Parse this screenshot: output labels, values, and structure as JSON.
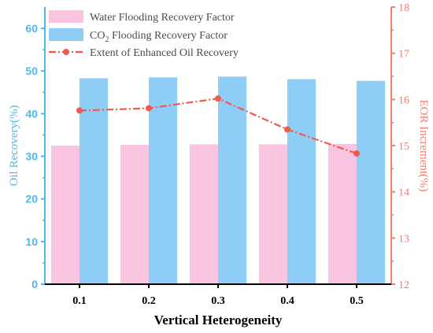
{
  "chart_data": {
    "type": "bar",
    "xlabel": "Vertical Heterogeneity",
    "ylabel_left": "Oil Recovery(%)",
    "ylabel_right": "EOR Increment(%)",
    "categories": [
      "0.1",
      "0.2",
      "0.3",
      "0.4",
      "0.5"
    ],
    "y_left": {
      "min": 0,
      "max": 65,
      "ticks": [
        "0",
        "10",
        "20",
        "30",
        "40",
        "50",
        "60"
      ]
    },
    "y_right": {
      "min": 12,
      "max": 18,
      "ticks": [
        "12",
        "13",
        "14",
        "15",
        "16",
        "17",
        "18"
      ]
    },
    "series": [
      {
        "name": "Water Flooding Recovery Factor",
        "kind": "bar",
        "axis": "left",
        "values": [
          32.5,
          32.7,
          32.8,
          32.8,
          32.9
        ],
        "color": "#f9c4df"
      },
      {
        "name": "CO2 Flooding Recovery Factor",
        "name_prefix": "CO",
        "name_sub": "2",
        "name_suffix": " Flooding Recovery Factor",
        "kind": "bar",
        "axis": "left",
        "values": [
          48.3,
          48.5,
          48.7,
          48.1,
          47.7
        ],
        "color": "#8ecdf5"
      },
      {
        "name": "Extent of Enhanced Oil Recovery",
        "kind": "line",
        "axis": "right",
        "values": [
          15.76,
          15.81,
          16.02,
          15.35,
          14.83
        ],
        "color": "#f05a4f"
      }
    ],
    "colors": {
      "left_axis": "#4fb8ea",
      "right_axis": "#f07f72",
      "bottom_axis": "#000000"
    },
    "legend_position": "top-left",
    "grid": false
  }
}
